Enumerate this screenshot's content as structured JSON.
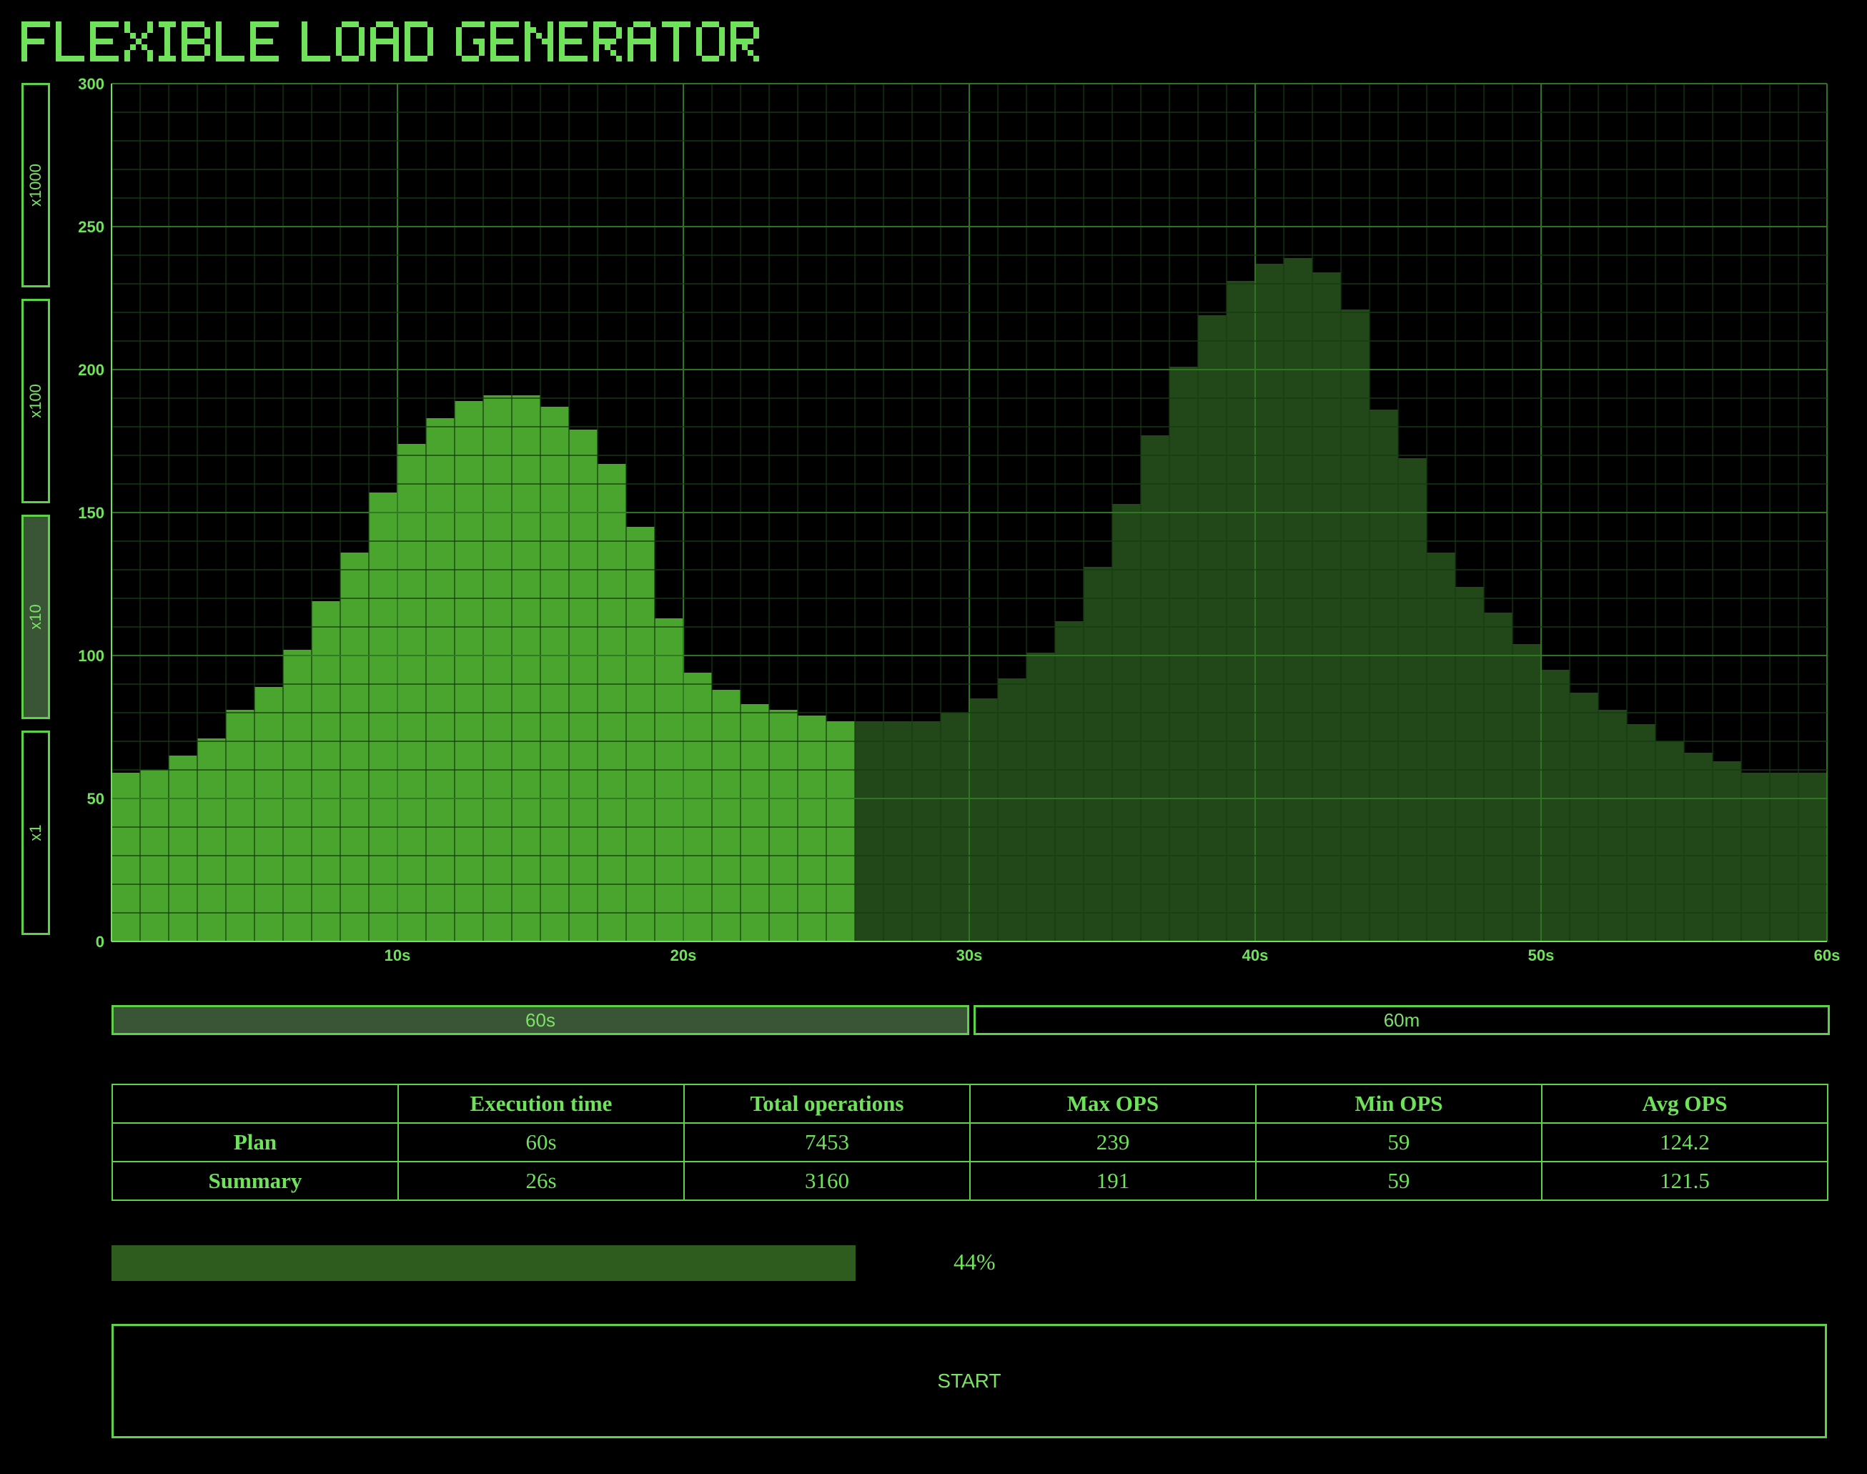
{
  "app": {
    "title": "FLEXIBLE LOAD GENERATOR"
  },
  "colors": {
    "background": "#000000",
    "accent": "#6fe15a",
    "grid_major": "#2e7a22",
    "grid_minor": "#153d12",
    "bar_done": "#4aa52f",
    "bar_pending": "#22481a",
    "active_button": "#3a5536",
    "progress_fill": "#2e5c1f"
  },
  "scale_buttons": [
    {
      "label": "x1000",
      "active": false
    },
    {
      "label": "x100",
      "active": false
    },
    {
      "label": "x10",
      "active": true
    },
    {
      "label": "x1",
      "active": false
    }
  ],
  "duration_buttons": [
    {
      "label": "60s",
      "active": true
    },
    {
      "label": "60m",
      "active": false
    }
  ],
  "chart_data": {
    "type": "bar",
    "title": "",
    "xlabel": "",
    "ylabel": "",
    "x_unit": "s",
    "xlim": [
      0,
      60
    ],
    "ylim": [
      0,
      300
    ],
    "y_ticks": [
      0,
      50,
      100,
      150,
      200,
      250,
      300
    ],
    "x_ticks": [
      {
        "value": 10,
        "label": "10s"
      },
      {
        "value": 20,
        "label": "20s"
      },
      {
        "value": 30,
        "label": "30s"
      },
      {
        "value": 40,
        "label": "40s"
      },
      {
        "value": 50,
        "label": "50s"
      },
      {
        "value": 60,
        "label": "60s"
      }
    ],
    "grid": true,
    "completed_seconds": 26,
    "values": [
      59,
      60,
      65,
      71,
      81,
      89,
      102,
      119,
      136,
      157,
      174,
      183,
      189,
      191,
      191,
      187,
      179,
      167,
      145,
      113,
      94,
      88,
      83,
      81,
      79,
      77,
      77,
      77,
      77,
      80,
      85,
      92,
      101,
      112,
      131,
      153,
      177,
      201,
      219,
      231,
      237,
      239,
      234,
      221,
      186,
      169,
      136,
      124,
      115,
      104,
      95,
      87,
      81,
      76,
      70,
      66,
      63,
      59,
      59,
      59
    ]
  },
  "stats": {
    "headers": [
      "",
      "Execution time",
      "Total operations",
      "Max OPS",
      "Min OPS",
      "Avg OPS"
    ],
    "rows": [
      [
        "Plan",
        "60s",
        "7453",
        "239",
        "59",
        "124.2"
      ],
      [
        "Summary",
        "26s",
        "3160",
        "191",
        "59",
        "121.5"
      ]
    ]
  },
  "progress": {
    "percent": 44,
    "label": "44%"
  },
  "start_button": {
    "label": "START"
  }
}
